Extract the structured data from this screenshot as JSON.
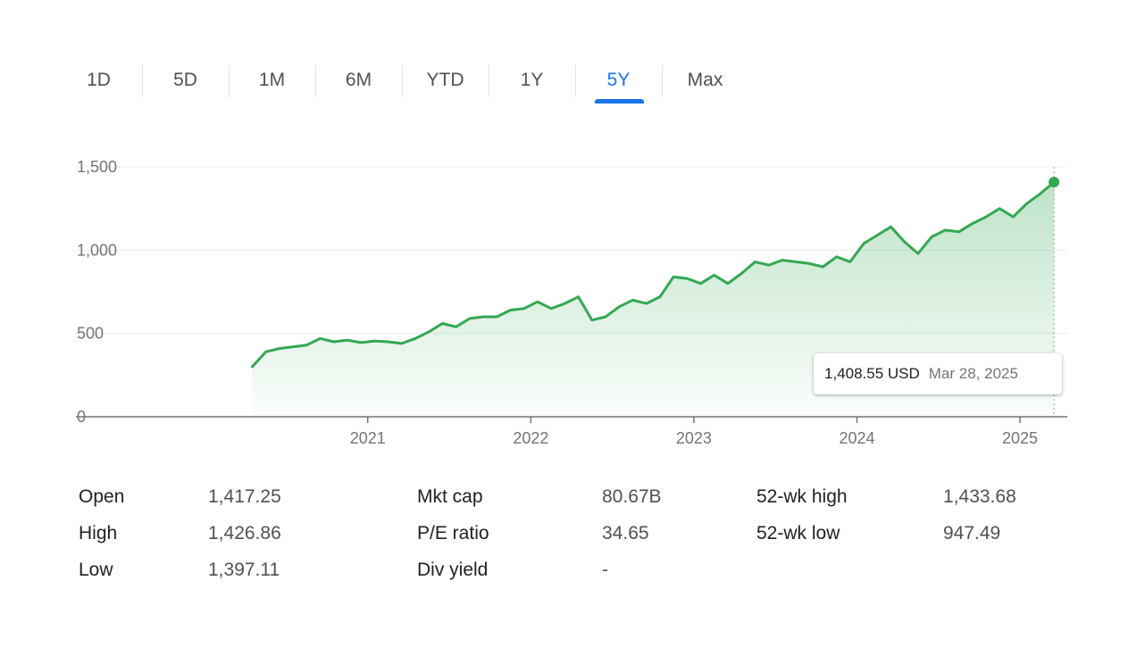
{
  "tabs": [
    {
      "label": "1D",
      "name": "tab-1d"
    },
    {
      "label": "5D",
      "name": "tab-5d"
    },
    {
      "label": "1M",
      "name": "tab-1m"
    },
    {
      "label": "6M",
      "name": "tab-6m"
    },
    {
      "label": "YTD",
      "name": "tab-ytd"
    },
    {
      "label": "1Y",
      "name": "tab-1y"
    },
    {
      "label": "5Y",
      "name": "tab-5y"
    },
    {
      "label": "Max",
      "name": "tab-max"
    }
  ],
  "active_tab": "5Y",
  "colors": {
    "line": "#34a853",
    "active_tab": "#1a73e8"
  },
  "tooltip": {
    "price": "1,408.55 USD",
    "date": "Mar 28, 2025"
  },
  "chart_data": {
    "type": "area",
    "title": "",
    "xlabel": "",
    "ylabel": "",
    "ylim": [
      0,
      1500
    ],
    "yticks": [
      "0",
      "500",
      "1,000",
      "1,500"
    ],
    "xticks": [
      "2021",
      "2022",
      "2023",
      "2024",
      "2025"
    ],
    "grid": true,
    "x": [
      "2020-04",
      "2020-05",
      "2020-06",
      "2020-07",
      "2020-08",
      "2020-09",
      "2020-10",
      "2020-11",
      "2020-12",
      "2021-01",
      "2021-02",
      "2021-03",
      "2021-04",
      "2021-05",
      "2021-06",
      "2021-07",
      "2021-08",
      "2021-09",
      "2021-10",
      "2021-11",
      "2021-12",
      "2022-01",
      "2022-02",
      "2022-03",
      "2022-04",
      "2022-05",
      "2022-06",
      "2022-07",
      "2022-08",
      "2022-09",
      "2022-10",
      "2022-11",
      "2022-12",
      "2023-01",
      "2023-02",
      "2023-03",
      "2023-04",
      "2023-05",
      "2023-06",
      "2023-07",
      "2023-08",
      "2023-09",
      "2023-10",
      "2023-11",
      "2023-12",
      "2024-01",
      "2024-02",
      "2024-03",
      "2024-04",
      "2024-05",
      "2024-06",
      "2024-07",
      "2024-08",
      "2024-09",
      "2024-10",
      "2024-11",
      "2024-12",
      "2025-01",
      "2025-02",
      "2025-03"
    ],
    "series": [
      {
        "values": [
          300,
          390,
          410,
          420,
          430,
          470,
          450,
          460,
          445,
          455,
          450,
          440,
          470,
          510,
          560,
          540,
          590,
          600,
          600,
          640,
          650,
          690,
          650,
          680,
          720,
          580,
          600,
          660,
          700,
          680,
          720,
          840,
          830,
          800,
          850,
          800,
          860,
          930,
          910,
          940,
          930,
          920,
          900,
          960,
          930,
          1040,
          1090,
          1140,
          1050,
          980,
          1080,
          1120,
          1110,
          1160,
          1200,
          1250,
          1200,
          1280,
          1340,
          1408.55
        ]
      }
    ]
  },
  "stats": [
    {
      "label": "Open",
      "value": "1,417.25"
    },
    {
      "label": "High",
      "value": "1,426.86"
    },
    {
      "label": "Low",
      "value": "1,397.11"
    },
    {
      "label": "Mkt cap",
      "value": "80.67B"
    },
    {
      "label": "P/E ratio",
      "value": "34.65"
    },
    {
      "label": "Div yield",
      "value": "-"
    },
    {
      "label": "52-wk high",
      "value": "1,433.68"
    },
    {
      "label": "52-wk low",
      "value": "947.49"
    }
  ]
}
